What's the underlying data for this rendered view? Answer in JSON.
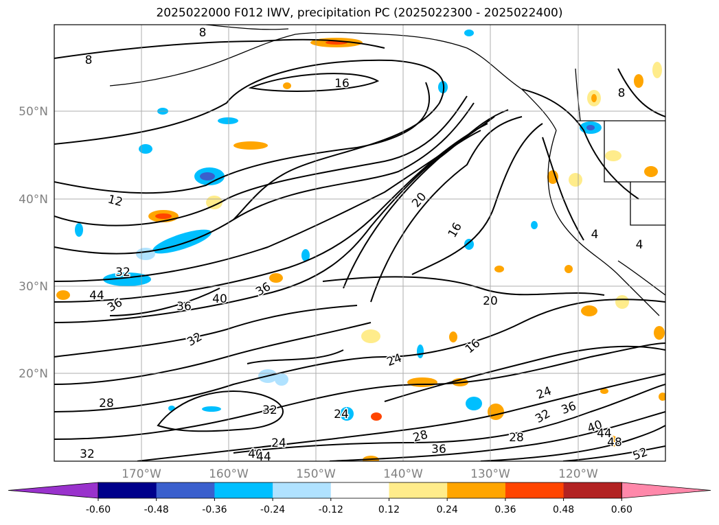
{
  "title": "2025022000 F012 IWV, precipitation PC (2025022300 - 2025022400)",
  "lat_labels": [
    "50°N",
    "40°N",
    "30°N",
    "20°N"
  ],
  "lon_labels": [
    "170°W",
    "160°W",
    "150°W",
    "140°W",
    "130°W",
    "120°W"
  ],
  "colorbar": {
    "colors": [
      "#9932cc",
      "#00008b",
      "#3a5fcd",
      "#00bfff",
      "#b0e2ff",
      "#ffffff",
      "#ffec8b",
      "#ffa500",
      "#ff4500",
      "#b22222",
      "#ff88aa"
    ],
    "tick_labels": [
      "-0.60",
      "-0.48",
      "-0.36",
      "-0.24",
      "-0.12",
      "0.12",
      "0.24",
      "0.36",
      "0.48",
      "0.60"
    ]
  },
  "contour_labels": [
    "8",
    "8",
    "16",
    "8",
    "12",
    "20",
    "16",
    "32",
    "36",
    "40",
    "36",
    "44",
    "36",
    "20",
    "16",
    "24",
    "24",
    "32",
    "28",
    "24",
    "28",
    "32",
    "24",
    "28",
    "36",
    "32",
    "36",
    "40",
    "44",
    "48",
    "52",
    "32",
    "40",
    "44",
    "4",
    "4"
  ]
}
